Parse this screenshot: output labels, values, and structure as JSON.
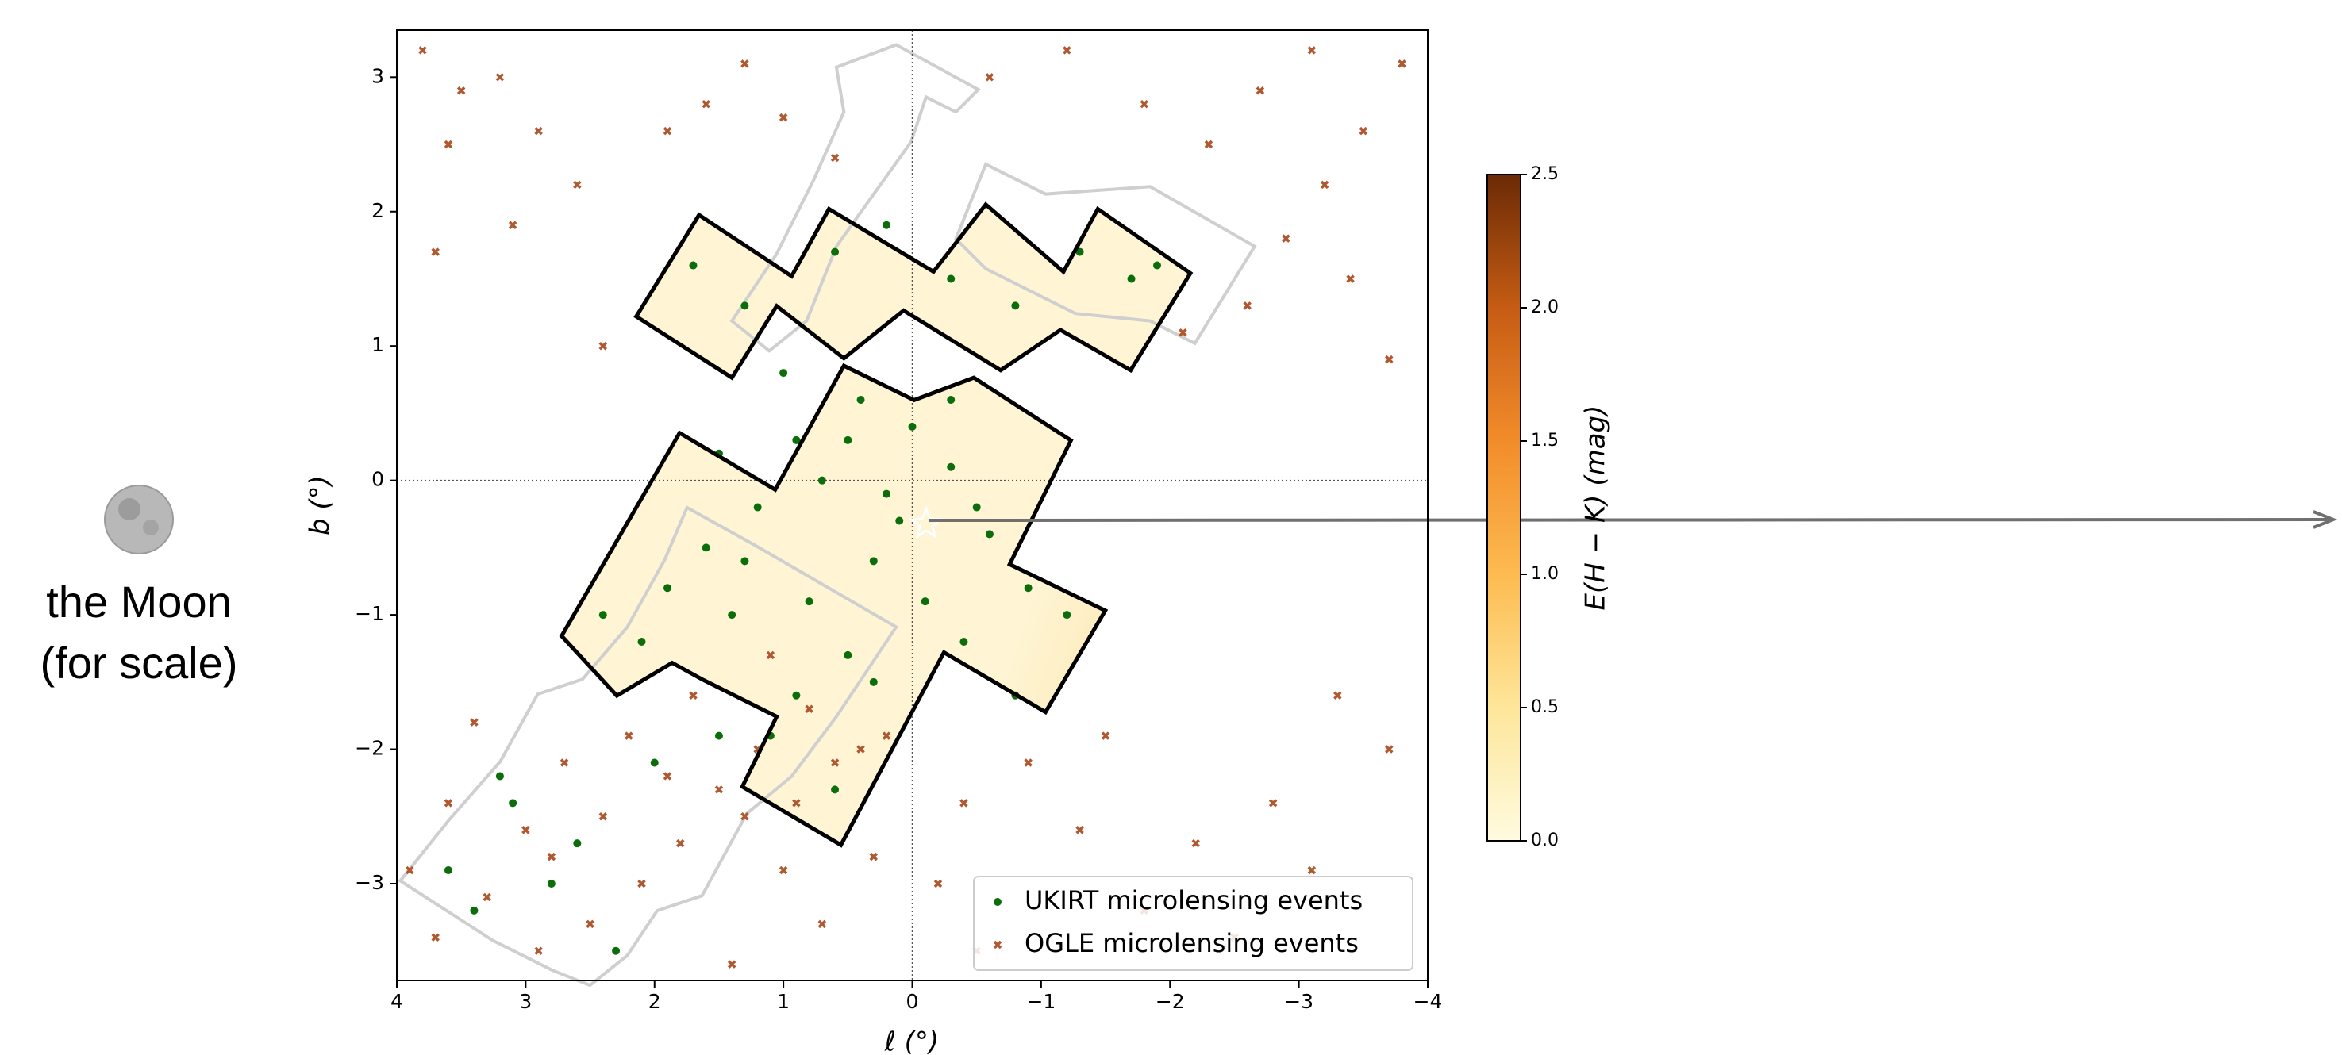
{
  "chart_data": {
    "type": "scatter",
    "xlabel": "ℓ (°)",
    "ylabel": "b (°)",
    "xlim": [
      4,
      -4
    ],
    "ylim": [
      -3.72,
      3.35
    ],
    "xticks": [
      4,
      3,
      2,
      1,
      0,
      {
        "value": -1,
        "label": "−1"
      },
      {
        "value": -2,
        "label": "−2"
      },
      {
        "value": -3,
        "label": "−3"
      },
      {
        "value": -4,
        "label": "−4"
      }
    ],
    "yticks": [
      {
        "value": -3,
        "label": "−3"
      },
      {
        "value": -2,
        "label": "−2"
      },
      {
        "value": -1,
        "label": "−1"
      },
      0,
      1,
      2,
      3
    ],
    "legend": "lower right",
    "series": [
      {
        "name": "UKIRT microlensing events",
        "color": "#0b6e0b",
        "x": [
          1.7,
          1.3,
          0.6,
          0.2,
          -0.3,
          -0.8,
          -1.3,
          -1.7,
          -1.9,
          1.0,
          0.4,
          0.0,
          -0.3,
          0.2,
          0.7,
          1.2,
          1.6,
          -0.6,
          -0.9,
          -1.2,
          0.3,
          0.8,
          1.4,
          2.1,
          2.4,
          1.9,
          0.5,
          0.9,
          1.1,
          0.6,
          0.3,
          -0.1,
          -0.4,
          -0.8,
          -0.3,
          0.9,
          1.5,
          2.6,
          3.1,
          3.4,
          3.6,
          2.3,
          2.0,
          1.5,
          3.2,
          2.8,
          0.1,
          -0.5,
          0.5,
          1.3
        ],
        "y": [
          1.6,
          1.3,
          1.7,
          1.9,
          1.5,
          1.3,
          1.7,
          1.5,
          1.6,
          0.8,
          0.6,
          0.4,
          0.1,
          -0.1,
          0.0,
          -0.2,
          -0.5,
          -0.4,
          -0.8,
          -1.0,
          -0.6,
          -0.9,
          -1.0,
          -1.2,
          -1.0,
          -0.8,
          -1.3,
          -1.6,
          -1.9,
          -2.3,
          -1.5,
          -0.9,
          -1.2,
          -1.6,
          0.6,
          0.3,
          0.2,
          -2.7,
          -2.4,
          -3.2,
          -2.9,
          -3.5,
          -2.1,
          -1.9,
          -2.2,
          -3.0,
          -0.3,
          -0.2,
          0.3,
          -0.6
        ]
      },
      {
        "name": "OGLE microlensing events",
        "color": "#b0582f",
        "x": [
          3.8,
          3.5,
          3.2,
          2.9,
          3.6,
          2.6,
          3.1,
          3.7,
          1.9,
          1.6,
          1.3,
          1.0,
          0.6,
          -0.6,
          -1.2,
          -1.8,
          -2.3,
          -2.7,
          -3.1,
          -3.5,
          -3.8,
          -3.2,
          -2.9,
          -3.4,
          -2.6,
          -2.1,
          -3.7,
          2.4,
          -3.3,
          -3.7,
          -2.8,
          -3.1,
          -2.2,
          -1.8,
          -1.3,
          -0.9,
          -0.4,
          -0.2,
          0.3,
          0.7,
          0.9,
          1.2,
          1.5,
          1.8,
          2.1,
          2.4,
          2.7,
          3.0,
          3.3,
          3.6,
          3.9,
          2.2,
          1.7,
          1.1,
          0.8,
          0.4,
          2.9,
          1.4,
          3.4,
          -0.5,
          0.2,
          1.0,
          2.5,
          3.7,
          -1.5,
          -2.5,
          0.6,
          1.9,
          2.8,
          1.3
        ],
        "y": [
          3.2,
          2.9,
          3.0,
          2.6,
          2.5,
          2.2,
          1.9,
          1.7,
          2.6,
          2.8,
          3.1,
          2.7,
          2.4,
          3.0,
          3.2,
          2.8,
          2.5,
          2.9,
          3.2,
          2.6,
          3.1,
          2.2,
          1.8,
          1.5,
          1.3,
          1.1,
          0.9,
          1.0,
          -1.6,
          -2.0,
          -2.4,
          -2.9,
          -2.7,
          -3.2,
          -2.6,
          -2.1,
          -2.4,
          -3.0,
          -2.8,
          -3.3,
          -2.4,
          -2.0,
          -2.3,
          -2.7,
          -3.0,
          -2.5,
          -2.1,
          -2.6,
          -3.1,
          -2.4,
          -2.9,
          -1.9,
          -1.6,
          -1.3,
          -1.7,
          -2.0,
          -3.5,
          -3.6,
          -1.8,
          -3.5,
          -1.9,
          -2.9,
          -3.3,
          -3.4,
          -1.9,
          -3.4,
          -2.1,
          -2.2,
          -2.8,
          -2.5
        ]
      }
    ],
    "colorbar": {
      "label": "E(H − K) (mag)",
      "lim": [
        0,
        2.5
      ],
      "ticks": [
        {
          "value": 0,
          "label": "0.0"
        },
        {
          "value": 0.5,
          "label": "0.5"
        },
        {
          "value": 1,
          "label": "1.0"
        },
        {
          "value": 1.5,
          "label": "1.5"
        },
        {
          "value": 2,
          "label": "2.0"
        },
        {
          "value": 2.5,
          "label": "2.5"
        }
      ]
    },
    "annotation": [
      "the Moon",
      "(for scale)"
    ]
  }
}
